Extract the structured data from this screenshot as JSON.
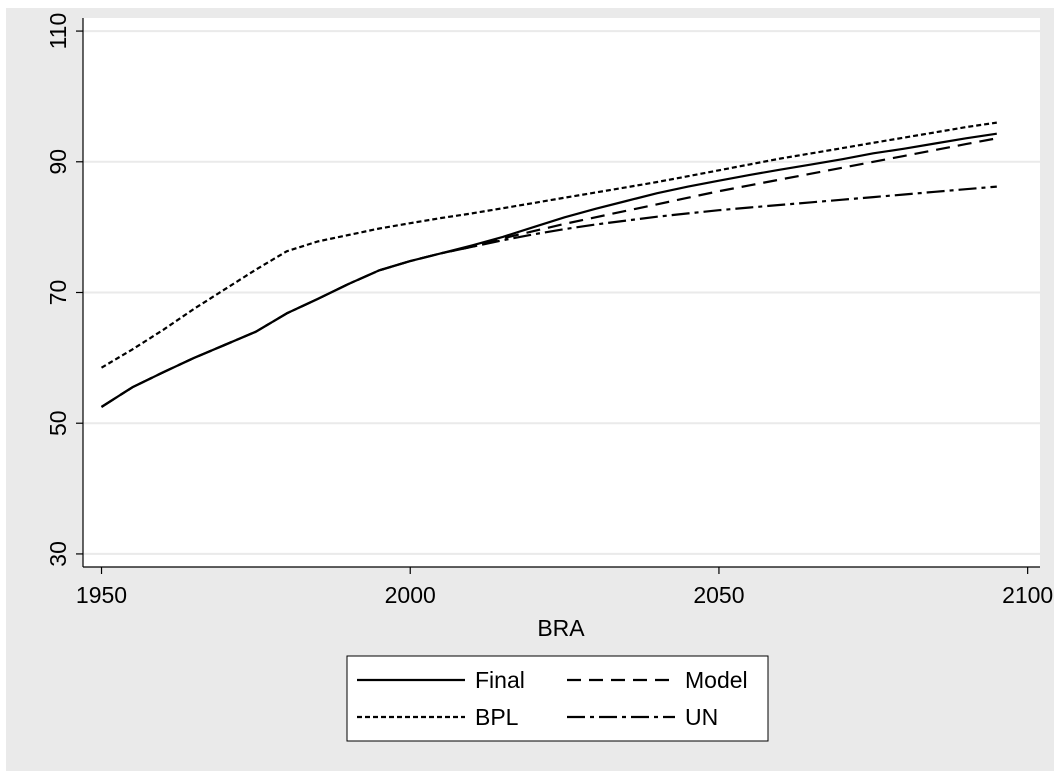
{
  "chart_data": {
    "type": "line",
    "title": "",
    "xlabel": "BRA",
    "ylabel": "",
    "xlim": [
      1947,
      2102
    ],
    "ylim": [
      28,
      112
    ],
    "x_ticks": [
      1950,
      2000,
      2050,
      2100
    ],
    "y_ticks": [
      30,
      50,
      70,
      90,
      110
    ],
    "x_tick_labels": [
      "1950",
      "2000",
      "2050",
      "2100"
    ],
    "y_tick_labels": [
      "30",
      "50",
      "70",
      "90",
      "110"
    ],
    "grid": "horizontal",
    "legend_position": "bottom",
    "series": [
      {
        "name": "Final",
        "style": "solid",
        "x": [
          1950,
          1955,
          1960,
          1965,
          1970,
          1975,
          1980,
          1985,
          1990,
          1995,
          2000,
          2005,
          2010,
          2015,
          2020,
          2025,
          2030,
          2035,
          2040,
          2045,
          2050,
          2055,
          2060,
          2065,
          2070,
          2075,
          2080,
          2085,
          2090,
          2095
        ],
        "y": [
          52.5,
          55.5,
          57.8,
          60.0,
          62.0,
          64.0,
          66.8,
          69.0,
          71.3,
          73.4,
          74.8,
          76.0,
          77.2,
          78.5,
          80.0,
          81.5,
          82.8,
          84.0,
          85.2,
          86.2,
          87.1,
          88.0,
          88.8,
          89.6,
          90.4,
          91.3,
          92.0,
          92.8,
          93.6,
          94.3
        ]
      },
      {
        "name": "Model",
        "style": "long-dash",
        "x": [
          1950,
          1955,
          1960,
          1965,
          1970,
          1975,
          1980,
          1985,
          1990,
          1995,
          2000,
          2005,
          2010,
          2015,
          2020,
          2025,
          2030,
          2035,
          2040,
          2045,
          2050,
          2055,
          2060,
          2065,
          2070,
          2075,
          2080,
          2085,
          2090,
          2095
        ],
        "y": [
          52.5,
          55.5,
          57.8,
          60.0,
          62.0,
          64.0,
          66.8,
          69.0,
          71.3,
          73.4,
          74.8,
          76.0,
          77.0,
          78.3,
          79.4,
          80.5,
          81.5,
          82.5,
          83.5,
          84.5,
          85.5,
          86.4,
          87.3,
          88.2,
          89.1,
          90.0,
          90.9,
          91.8,
          92.7,
          93.6
        ]
      },
      {
        "name": "BPL",
        "style": "short-dash",
        "x": [
          1950,
          1955,
          1960,
          1965,
          1970,
          1975,
          1980,
          1985,
          1990,
          1995,
          2000,
          2005,
          2010,
          2015,
          2020,
          2025,
          2030,
          2035,
          2040,
          2045,
          2050,
          2055,
          2060,
          2065,
          2070,
          2075,
          2080,
          2085,
          2090,
          2095
        ],
        "y": [
          58.5,
          61.3,
          64.3,
          67.5,
          70.5,
          73.5,
          76.3,
          77.8,
          78.8,
          79.8,
          80.6,
          81.4,
          82.1,
          82.9,
          83.7,
          84.5,
          85.3,
          86.1,
          86.9,
          87.8,
          88.7,
          89.6,
          90.5,
          91.3,
          92.1,
          92.9,
          93.7,
          94.5,
          95.3,
          96.0
        ]
      },
      {
        "name": "UN",
        "style": "dash-dot",
        "x": [
          1950,
          1955,
          1960,
          1965,
          1970,
          1975,
          1980,
          1985,
          1990,
          1995,
          2000,
          2005,
          2010,
          2015,
          2020,
          2025,
          2030,
          2035,
          2040,
          2045,
          2050,
          2055,
          2060,
          2065,
          2070,
          2075,
          2080,
          2085,
          2090,
          2095
        ],
        "y": [
          52.5,
          55.5,
          57.8,
          60.0,
          62.0,
          64.0,
          66.8,
          69.0,
          71.3,
          73.4,
          74.8,
          76.0,
          77.0,
          78.0,
          78.9,
          79.7,
          80.4,
          81.0,
          81.6,
          82.1,
          82.6,
          83.0,
          83.4,
          83.8,
          84.2,
          84.6,
          85.0,
          85.4,
          85.8,
          86.2
        ]
      }
    ]
  },
  "colors": {
    "outer_background": "#eaeaea",
    "plot_background": "#ffffff",
    "grid": "#eaeaea",
    "line": "#000000"
  }
}
